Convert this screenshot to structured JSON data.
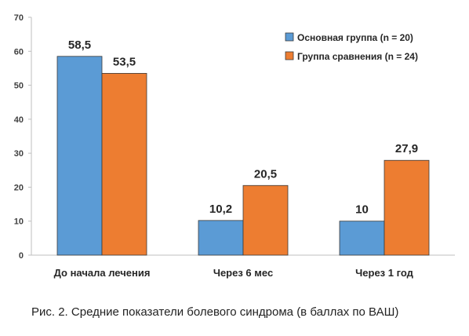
{
  "caption": "Рис. 2. Средние показатели болевого синдрома (в баллах по ВАШ)",
  "chart_data": {
    "type": "bar",
    "title": "",
    "xlabel": "",
    "ylabel": "",
    "ylim": [
      0,
      70
    ],
    "yticks": [
      0,
      10,
      20,
      30,
      40,
      50,
      60,
      70
    ],
    "grid": false,
    "legend_position": "top-right",
    "categories": [
      "До начала лечения",
      "Через 6 мес",
      "Через 1 год"
    ],
    "series": [
      {
        "name": "Основная группа (n = 20)",
        "color": "#5b9bd5",
        "values": [
          58.5,
          10.2,
          10
        ],
        "labels": [
          "58,5",
          "10,2",
          "10"
        ]
      },
      {
        "name": "Группа сравнения (n = 24)",
        "color": "#ed7d31",
        "values": [
          53.5,
          20.5,
          27.9
        ],
        "labels": [
          "53,5",
          "20,5",
          "27,9"
        ]
      }
    ]
  }
}
